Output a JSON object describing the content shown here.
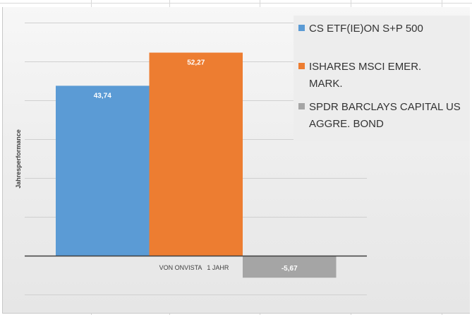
{
  "chart_data": {
    "type": "bar",
    "categories": [
      "VON ONVISTA   1 JAHR"
    ],
    "series": [
      {
        "name": "CS ETF(IE)ON S+P 500",
        "values": [
          43.74
        ],
        "labels": [
          "43,74"
        ],
        "color": "#5b9bd5"
      },
      {
        "name": "ISHARES MSCI EMER. MARK.",
        "values": [
          52.27
        ],
        "labels": [
          "52,27"
        ],
        "color": "#ed7d31"
      },
      {
        "name": "SPDR BARCLAYS CAPITAL US AGGRE. BOND",
        "values": [
          -5.67
        ],
        "labels": [
          "-5,67"
        ],
        "color": "#a5a5a5"
      }
    ],
    "ylabel": "Jahresperformance",
    "xlabel": "",
    "title": "",
    "ylim": [
      -11,
      68
    ],
    "grid": true,
    "legend_position": "right",
    "legend_lines": [
      [
        "CS ETF(IE)ON S+P 500"
      ],
      [
        "ISHARES MSCI EMER.",
        "MARK."
      ],
      [
        "SPDR BARCLAYS CAPITAL US",
        "AGGRE. BOND"
      ]
    ]
  }
}
